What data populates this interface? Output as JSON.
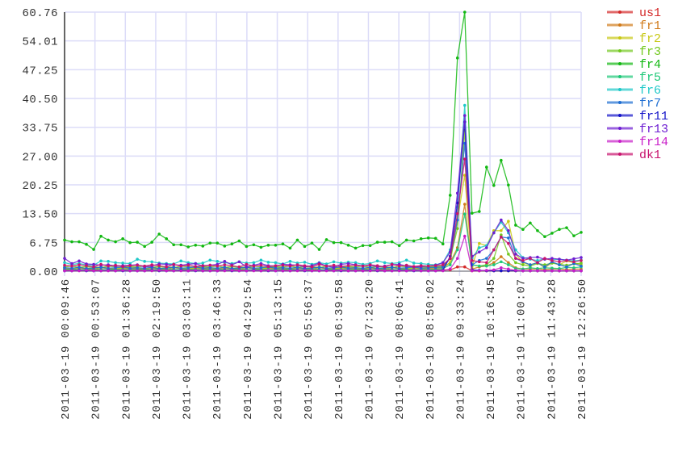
{
  "chart_data": {
    "type": "line",
    "title": "",
    "xlabel": "",
    "ylabel": "",
    "ylim": [
      0,
      60.76
    ],
    "grid": true,
    "legend_position": "right",
    "y_ticks": [
      "0.00",
      "6.75",
      "13.50",
      "20.25",
      "27.00",
      "33.75",
      "40.50",
      "47.25",
      "54.01",
      "60.76"
    ],
    "x_ticks": [
      "2011-03-19 00:09:46",
      "2011-03-19 00:53:07",
      "2011-03-19 01:36:28",
      "2011-03-19 02:19:50",
      "2011-03-19 03:03:11",
      "2011-03-19 03:46:33",
      "2011-03-19 04:29:54",
      "2011-03-19 05:13:15",
      "2011-03-19 05:56:37",
      "2011-03-19 06:39:58",
      "2011-03-19 07:23:20",
      "2011-03-19 08:06:41",
      "2011-03-19 08:50:02",
      "2011-03-19 09:33:24",
      "2011-03-19 10:16:45",
      "2011-03-19 11:00:07",
      "2011-03-19 11:43:28",
      "2011-03-19 12:26:50"
    ],
    "series": [
      {
        "name": "us1",
        "color": "#d42a2a",
        "values": [
          0.3,
          0.2,
          0.3,
          0.4,
          0.3,
          0.2,
          0.3,
          0.3,
          0.4,
          0.2,
          0.3,
          0.2,
          0.3,
          0.4,
          0.3,
          0.2,
          0.3,
          0.3,
          0.4,
          0.2,
          0.3,
          0.2,
          0.3,
          0.4,
          0.3,
          0.2,
          0.3,
          0.3,
          0.4,
          0.2,
          0.3,
          0.2,
          0.3,
          0.4,
          0.3,
          0.2,
          0.3,
          0.3,
          0.4,
          0.2,
          0.3,
          0.2,
          0.3,
          0.4,
          0.3,
          0.2,
          0.3,
          0.3,
          0.4,
          0.2,
          0.3,
          0.3,
          0.3,
          0.3,
          1.0,
          1.0,
          0.1,
          0.1,
          0.1,
          0.1,
          0.1,
          0.1,
          0.1,
          0.1,
          0.1,
          0.1,
          0.1,
          0.1,
          0.1,
          0.1,
          0.1,
          0.1
        ]
      },
      {
        "name": "fr1",
        "color": "#d07a1a",
        "values": [
          0.6,
          0.5,
          0.7,
          0.6,
          0.5,
          0.8,
          0.6,
          0.5,
          0.7,
          0.6,
          0.6,
          0.5,
          0.7,
          0.6,
          0.5,
          0.8,
          0.6,
          0.5,
          0.7,
          0.6,
          0.6,
          0.5,
          0.7,
          0.6,
          0.5,
          0.8,
          0.6,
          0.5,
          0.7,
          0.6,
          0.6,
          0.5,
          0.7,
          0.6,
          0.5,
          0.8,
          0.6,
          0.5,
          0.7,
          0.6,
          0.6,
          0.5,
          0.7,
          0.6,
          0.5,
          0.8,
          0.6,
          0.5,
          0.7,
          0.6,
          0.6,
          0.7,
          0.8,
          2.0,
          5.5,
          15.7,
          0.5,
          1.0,
          1.2,
          2.0,
          3.4,
          2.0,
          0.8,
          0.5,
          0.5,
          0.5,
          0.4,
          0.5,
          0.5,
          0.4,
          0.5,
          0.5
        ]
      },
      {
        "name": "fr2",
        "color": "#c8c814",
        "values": [
          0.8,
          0.6,
          0.9,
          0.7,
          0.8,
          1.0,
          0.7,
          0.6,
          0.8,
          0.9,
          0.8,
          0.6,
          0.9,
          0.7,
          0.8,
          1.0,
          0.7,
          0.6,
          0.8,
          0.9,
          0.8,
          0.6,
          0.9,
          0.7,
          0.8,
          1.0,
          0.7,
          0.6,
          0.8,
          0.9,
          0.8,
          0.6,
          0.9,
          0.7,
          0.8,
          1.0,
          0.7,
          0.6,
          0.8,
          0.9,
          0.8,
          0.6,
          0.9,
          0.7,
          0.8,
          1.0,
          0.7,
          0.6,
          0.8,
          0.9,
          0.8,
          0.9,
          1.0,
          2.0,
          12.0,
          22.5,
          1.0,
          6.5,
          6.0,
          9.5,
          9.5,
          11.7,
          4.0,
          2.0,
          1.5,
          2.0,
          0.8,
          2.0,
          1.5,
          2.4,
          2.0,
          1.5
        ]
      },
      {
        "name": "fr3",
        "color": "#72c81e",
        "values": [
          1.0,
          1.2,
          0.9,
          1.1,
          1.0,
          0.8,
          1.2,
          1.0,
          0.9,
          1.1,
          1.0,
          1.2,
          0.9,
          1.1,
          1.0,
          0.8,
          1.2,
          1.0,
          0.9,
          1.1,
          1.0,
          1.2,
          0.9,
          1.1,
          1.0,
          0.8,
          1.2,
          1.0,
          0.9,
          1.1,
          1.0,
          1.2,
          0.9,
          1.1,
          1.0,
          0.8,
          1.2,
          1.0,
          0.9,
          1.1,
          1.0,
          1.2,
          0.9,
          1.1,
          1.0,
          0.8,
          1.2,
          1.0,
          0.9,
          1.1,
          1.0,
          1.1,
          1.2,
          3.0,
          10.0,
          33.0,
          1.5,
          1.2,
          1.5,
          3.0,
          8.5,
          4.0,
          2.0,
          1.5,
          1.2,
          1.8,
          1.5,
          1.9,
          1.6,
          1.4,
          1.7,
          1.9
        ]
      },
      {
        "name": "fr4",
        "color": "#12b812",
        "values": [
          7.3,
          6.9,
          6.9,
          6.3,
          5.1,
          8.2,
          7.3,
          6.9,
          7.6,
          6.7,
          6.8,
          5.8,
          6.8,
          8.7,
          7.6,
          6.2,
          6.2,
          5.7,
          6.1,
          5.9,
          6.6,
          6.6,
          5.9,
          6.4,
          7.1,
          5.8,
          6.2,
          5.6,
          6.1,
          6.1,
          6.4,
          5.4,
          7.3,
          5.8,
          6.6,
          5.1,
          7.4,
          6.7,
          6.7,
          6.1,
          5.4,
          6.0,
          6.0,
          6.8,
          6.8,
          6.9,
          6.0,
          7.3,
          7.1,
          7.6,
          7.8,
          7.7,
          6.4,
          17.8,
          50.0,
          60.76,
          13.6,
          14.0,
          24.4,
          20.1,
          26.0,
          20.2,
          10.8,
          9.8,
          11.3,
          9.5,
          8.1,
          8.9,
          9.8,
          10.2,
          8.3,
          9.1
        ]
      },
      {
        "name": "fr5",
        "color": "#1ec878",
        "values": [
          0.4,
          0.5,
          0.3,
          0.4,
          0.6,
          0.4,
          0.3,
          0.5,
          0.4,
          0.4,
          0.4,
          0.5,
          0.3,
          0.4,
          0.6,
          0.4,
          0.3,
          0.5,
          0.4,
          0.4,
          0.4,
          0.5,
          0.3,
          0.4,
          0.6,
          0.4,
          0.3,
          0.5,
          0.4,
          0.4,
          0.4,
          0.5,
          0.3,
          0.4,
          0.6,
          0.4,
          0.3,
          0.5,
          0.4,
          0.4,
          0.4,
          0.5,
          0.3,
          0.4,
          0.6,
          0.4,
          0.3,
          0.5,
          0.4,
          0.4,
          0.4,
          0.5,
          0.6,
          1.5,
          5.0,
          13.4,
          1.5,
          1.2,
          1.2,
          1.5,
          2.2,
          1.5,
          0.6,
          0.5,
          0.8,
          0.6,
          0.8,
          0.7,
          0.6,
          0.9,
          0.8,
          1.0
        ]
      },
      {
        "name": "fr6",
        "color": "#1ec8c8",
        "values": [
          2.0,
          1.6,
          1.8,
          1.5,
          1.4,
          2.4,
          2.3,
          2.0,
          1.9,
          1.8,
          2.8,
          2.3,
          2.2,
          1.9,
          1.8,
          1.7,
          2.4,
          2.0,
          1.8,
          1.9,
          2.6,
          2.3,
          2.0,
          1.8,
          2.2,
          1.9,
          2.0,
          2.6,
          2.1,
          2.0,
          1.7,
          2.3,
          1.9,
          2.1,
          1.6,
          2.0,
          1.7,
          2.2,
          1.9,
          2.1,
          2.0,
          1.6,
          1.8,
          2.4,
          2.0,
          1.8,
          2.0,
          2.6,
          1.9,
          1.8,
          1.6,
          1.5,
          2.0,
          5.0,
          15.0,
          38.9,
          3.0,
          5.5,
          6.0,
          9.0,
          11.5,
          9.0,
          5.0,
          3.2,
          2.8,
          2.5,
          2.9,
          2.7,
          2.8,
          2.6,
          2.4,
          2.6
        ]
      },
      {
        "name": "fr7",
        "color": "#1e6ed2",
        "values": [
          0.8,
          0.7,
          0.9,
          0.6,
          0.8,
          0.9,
          0.7,
          0.8,
          1.0,
          0.7,
          0.8,
          0.7,
          0.9,
          0.6,
          0.8,
          0.9,
          0.7,
          0.8,
          1.0,
          0.7,
          0.8,
          0.7,
          0.9,
          0.6,
          0.8,
          0.9,
          0.7,
          0.8,
          1.0,
          0.7,
          0.8,
          0.7,
          0.9,
          0.6,
          0.8,
          0.9,
          0.7,
          0.8,
          1.0,
          0.7,
          0.8,
          0.7,
          0.9,
          0.6,
          0.8,
          0.9,
          0.7,
          0.8,
          1.0,
          0.7,
          0.8,
          0.9,
          1.0,
          3.0,
          12.0,
          30.0,
          1.5,
          2.5,
          3.0,
          5.0,
          8.0,
          7.8,
          3.0,
          2.2,
          1.5,
          2.0,
          1.0,
          2.2,
          1.5,
          1.0,
          1.8,
          1.2
        ]
      },
      {
        "name": "fr11",
        "color": "#1414c8",
        "values": [
          0.1,
          0.1,
          0.2,
          0.1,
          0.1,
          0.1,
          0.2,
          0.1,
          0.1,
          0.1,
          0.1,
          0.1,
          0.2,
          0.1,
          0.1,
          0.1,
          0.2,
          0.1,
          0.1,
          0.1,
          0.1,
          0.1,
          0.2,
          0.1,
          0.1,
          0.1,
          0.2,
          0.1,
          0.1,
          0.1,
          0.1,
          0.1,
          0.2,
          0.1,
          0.1,
          0.1,
          0.2,
          0.1,
          0.1,
          0.1,
          0.1,
          0.1,
          0.2,
          0.1,
          0.1,
          0.1,
          0.2,
          0.1,
          0.1,
          0.1,
          0.1,
          0.1,
          0.2,
          3.5,
          16.0,
          35.0,
          0.3,
          0.2,
          0.1,
          0.1,
          0.1,
          0.1,
          0.1,
          0.1,
          0.1,
          0.1,
          0.1,
          0.1,
          0.1,
          0.1,
          0.1,
          0.1
        ]
      },
      {
        "name": "fr13",
        "color": "#6e1ed2",
        "values": [
          3.0,
          1.8,
          2.4,
          1.7,
          1.6,
          1.4,
          1.5,
          1.2,
          1.3,
          1.4,
          1.5,
          1.0,
          1.2,
          1.7,
          1.6,
          1.5,
          1.4,
          1.6,
          1.8,
          1.2,
          1.4,
          1.6,
          2.3,
          1.5,
          2.2,
          1.0,
          1.4,
          1.8,
          1.3,
          1.2,
          1.6,
          1.5,
          1.4,
          1.0,
          1.3,
          1.9,
          1.2,
          0.9,
          1.6,
          1.8,
          1.5,
          1.2,
          1.4,
          1.0,
          1.2,
          1.5,
          1.6,
          1.2,
          1.0,
          1.1,
          1.2,
          1.4,
          2.0,
          4.5,
          18.3,
          36.5,
          3.5,
          4.5,
          5.5,
          9.0,
          12.0,
          9.5,
          4.0,
          3.0,
          3.2,
          3.3,
          2.8,
          3.0,
          2.8,
          2.6,
          2.9,
          3.2
        ]
      },
      {
        "name": "fr14",
        "color": "#c81ec8",
        "values": [
          0.1,
          0.1,
          0.1,
          0.2,
          0.1,
          0.1,
          0.1,
          0.1,
          0.2,
          0.1,
          0.1,
          0.1,
          0.1,
          0.2,
          0.1,
          0.1,
          0.1,
          0.1,
          0.2,
          0.1,
          0.1,
          0.1,
          0.1,
          0.2,
          0.1,
          0.1,
          0.1,
          0.1,
          0.2,
          0.1,
          0.1,
          0.1,
          0.1,
          0.2,
          0.1,
          0.1,
          0.1,
          0.1,
          0.2,
          0.1,
          0.1,
          0.1,
          0.1,
          0.2,
          0.1,
          0.1,
          0.1,
          0.1,
          0.2,
          0.1,
          0.1,
          0.1,
          0.1,
          0.5,
          3.0,
          8.2,
          0.1,
          0.1,
          0.2,
          0.3,
          0.8,
          0.5,
          0.2,
          0.1,
          0.1,
          0.1,
          0.1,
          0.1,
          0.1,
          0.1,
          0.1,
          0.1
        ]
      },
      {
        "name": "dk1",
        "color": "#c8146e",
        "values": [
          1.4,
          1.2,
          1.5,
          1.3,
          1.0,
          1.6,
          1.2,
          1.4,
          1.1,
          1.3,
          1.4,
          1.2,
          1.5,
          1.3,
          1.0,
          1.6,
          1.2,
          1.4,
          1.1,
          1.3,
          1.4,
          1.2,
          1.5,
          1.3,
          1.0,
          1.6,
          1.2,
          1.4,
          1.1,
          1.3,
          1.4,
          1.2,
          1.5,
          1.3,
          1.0,
          1.6,
          1.2,
          1.4,
          1.1,
          1.3,
          1.4,
          1.2,
          1.5,
          1.3,
          1.0,
          1.6,
          1.2,
          1.4,
          1.1,
          1.3,
          1.2,
          1.3,
          1.5,
          3.0,
          13.5,
          26.3,
          2.5,
          2.2,
          2.0,
          5.0,
          8.0,
          6.5,
          3.0,
          2.5,
          3.0,
          2.0,
          3.0,
          2.5,
          2.2,
          2.5,
          2.2,
          2.5
        ]
      }
    ]
  }
}
